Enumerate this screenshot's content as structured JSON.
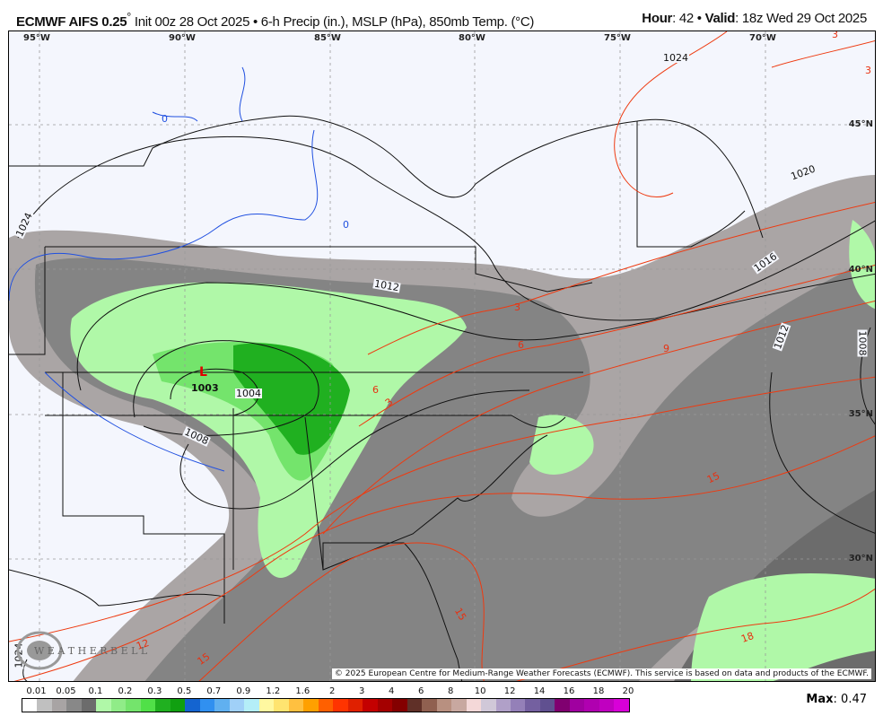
{
  "header": {
    "model": "ECMWF AIFS 0.25",
    "deg": "°",
    "description": " Init 00z 28 Oct 2025 • 6-h Precip (in.), MSLP (hPa), 850mb Temp. (°C)",
    "hour_label": "Hour",
    "hour": ": 42 • ",
    "valid_label": "Valid",
    "valid": ": 18z Wed 29 Oct 2025"
  },
  "map": {
    "longitudes": [
      "95°W",
      "90°W",
      "85°W",
      "80°W",
      "75°W",
      "70°W"
    ],
    "latitudes": [
      "45°N",
      "40°N",
      "35°N",
      "30°N"
    ],
    "isobar_labels": [
      "1024",
      "1020",
      "1016",
      "1012",
      "1012",
      "1008",
      "1008",
      "1004",
      "1024",
      "1024",
      "1003"
    ],
    "low_symbol": "L",
    "temp_labels": [
      "0",
      "0",
      "3",
      "3",
      "3",
      "6",
      "6",
      "9",
      "12",
      "15",
      "15",
      "18",
      "3",
      "15"
    ],
    "copyright": "© 2025 European Centre for Medium-Range Weather Forecasts (ECMWF). This service is based on data and products of the ECMWF.",
    "logo_text": "WeatherBELL"
  },
  "colorbar": {
    "labels": [
      "0.01",
      "0.05",
      "0.1",
      "0.2",
      "0.3",
      "0.5",
      "0.7",
      "0.9",
      "1.2",
      "1.6",
      "2",
      "3",
      "4",
      "6",
      "8",
      "10",
      "12",
      "14",
      "16",
      "18",
      "20"
    ],
    "colors": [
      "#ffffff",
      "#c0c0c0",
      "#a8a4a4",
      "#888888",
      "#6c6c6c",
      "#b0f8a8",
      "#90ec88",
      "#74e46c",
      "#50e048",
      "#20b020",
      "#10a010",
      "#1464d0",
      "#3090f0",
      "#60b0f0",
      "#a0d0f8",
      "#b4eef8",
      "#fff8a0",
      "#ffe470",
      "#ffc040",
      "#ffa000",
      "#ff6000",
      "#ff3400",
      "#e02000",
      "#c40000",
      "#a40000",
      "#840000",
      "#603028",
      "#906050",
      "#b89080",
      "#c8a8a0",
      "#f4d8d8",
      "#d0c8d8",
      "#b0a0c8",
      "#9480b8",
      "#7460a0",
      "#605090",
      "#800070",
      "#a000a0",
      "#b000b0",
      "#c000c0",
      "#d800d8"
    ]
  },
  "max": {
    "label": "Max",
    "value": ": 0.47"
  }
}
